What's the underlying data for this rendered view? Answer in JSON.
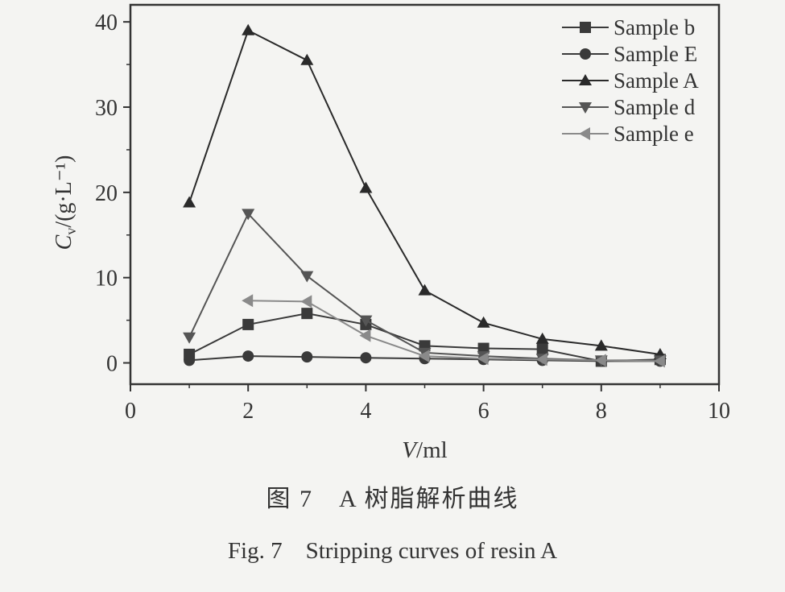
{
  "chart_data": {
    "type": "line",
    "x_axis": {
      "label_var": "V",
      "label_unit": "/ml",
      "range": [
        0,
        10
      ],
      "ticks": [
        "0",
        "2",
        "4",
        "6",
        "8",
        "10"
      ]
    },
    "y_axis": {
      "label_var": "C",
      "label_sub": "v",
      "label_unit": "/(g·L⁻¹)",
      "range": [
        -2.5,
        42
      ],
      "ticks": [
        "0",
        "10",
        "20",
        "30",
        "40"
      ]
    },
    "grid": false,
    "legend_position": "top-right",
    "series": [
      {
        "name": "Sample b",
        "marker": "square",
        "color": "#3a3a3a",
        "x": [
          1,
          2,
          3,
          4,
          5,
          6,
          7,
          8,
          9
        ],
        "y": [
          1.0,
          4.5,
          5.8,
          4.5,
          2.0,
          1.7,
          1.6,
          0.2,
          0.4
        ]
      },
      {
        "name": "Sample E",
        "marker": "circle",
        "color": "#3a3a3a",
        "x": [
          1,
          2,
          3,
          4,
          5,
          6,
          7,
          8,
          9
        ],
        "y": [
          0.3,
          0.8,
          0.7,
          0.6,
          0.5,
          0.4,
          0.3,
          0.2,
          0.2
        ]
      },
      {
        "name": "Sample A",
        "marker": "triangle-up",
        "color": "#2a2a2a",
        "x": [
          1,
          2,
          3,
          4,
          5,
          6,
          7,
          8,
          9
        ],
        "y": [
          18.8,
          39.0,
          35.5,
          20.5,
          8.5,
          4.7,
          2.8,
          2.0,
          1.0
        ]
      },
      {
        "name": "Sample d",
        "marker": "triangle-down",
        "color": "#555555",
        "x": [
          1,
          2,
          3,
          4,
          5,
          6,
          7,
          8,
          9
        ],
        "y": [
          3.0,
          17.5,
          10.2,
          5.0,
          1.2,
          0.8,
          0.5,
          0.3,
          0.3
        ]
      },
      {
        "name": "Sample e",
        "marker": "triangle-left",
        "color": "#8a8a8a",
        "x": [
          2,
          3,
          4,
          5,
          6,
          7,
          8,
          9
        ],
        "y": [
          7.3,
          7.2,
          3.2,
          0.8,
          0.5,
          0.4,
          0.3,
          0.2
        ]
      }
    ]
  },
  "caption": {
    "cn": "图 7　A 树脂解析曲线",
    "en": "Fig. 7　Stripping curves of resin A"
  }
}
